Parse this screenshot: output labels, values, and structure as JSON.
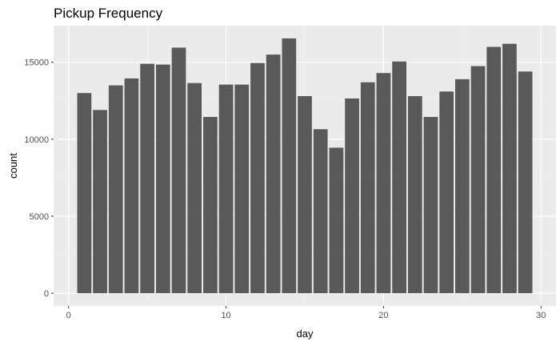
{
  "chart_data": {
    "type": "bar",
    "title": "Pickup Frequency",
    "xlabel": "day",
    "ylabel": "count",
    "x": [
      1,
      2,
      3,
      4,
      5,
      6,
      7,
      8,
      9,
      10,
      11,
      12,
      13,
      14,
      15,
      16,
      17,
      18,
      19,
      20,
      21,
      22,
      23,
      24,
      25,
      26,
      27,
      28,
      29
    ],
    "values": [
      13000,
      11900,
      13500,
      13950,
      14900,
      14850,
      15950,
      13650,
      11450,
      13550,
      13550,
      14950,
      15500,
      16550,
      12800,
      10650,
      9450,
      12650,
      13700,
      14300,
      15050,
      12800,
      11450,
      13100,
      13900,
      14750,
      16000,
      16200,
      14400
    ],
    "xlim": [
      -0.95,
      30.95
    ],
    "ylim": [
      -830,
      17380
    ],
    "x_ticks": [
      0,
      10,
      20,
      30
    ],
    "x_minor_ticks": [
      5,
      15,
      25
    ],
    "y_ticks": [
      0,
      5000,
      10000,
      15000
    ],
    "y_tick_labels": [
      "0",
      "5000",
      "10000",
      "15000"
    ],
    "y_minor_ticks": [
      2500,
      7500,
      12500
    ],
    "grid": true,
    "legend": "none",
    "colors": {
      "bar": "#595959",
      "panel": "#ebebeb",
      "grid_major": "#ffffff",
      "grid_minor": "#f5f5f5",
      "tick": "#333333"
    }
  }
}
